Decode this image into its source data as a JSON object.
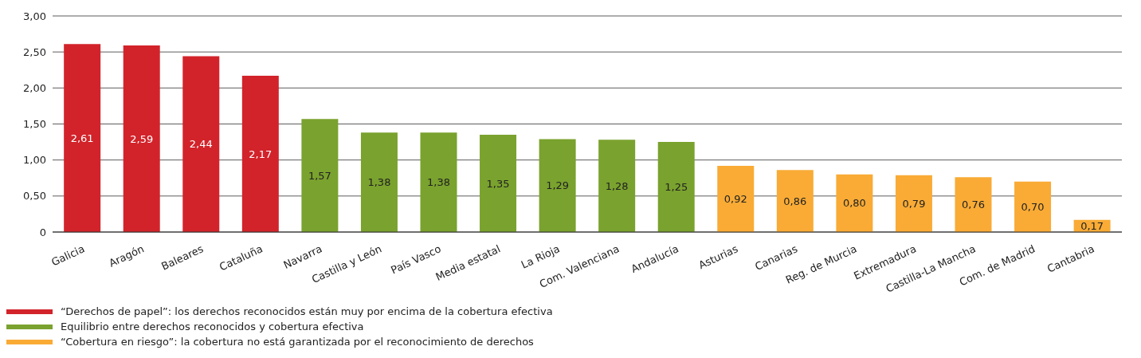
{
  "chart_data": {
    "type": "bar",
    "stacked": true,
    "grid": "y",
    "legend": "bottom left",
    "categories": [
      "Galicia",
      "Aragón",
      "Baleares",
      "Cataluña",
      "Navarra",
      "Castilla y León",
      "País Vasco",
      "Media estatal",
      "La Rioja",
      "Com. Valenciana",
      "Andalucía",
      "Asturias",
      "Canarias",
      "Reg. de Murcia",
      "Extremadura",
      "Castilla-La Mancha",
      "Com. de Madrid",
      "Cantabria"
    ],
    "series": [
      {
        "name": "“Derechos de papel”: los derechos reconocidos están muy por encima de la cobertura efectiva",
        "color": "#d2232a",
        "values": [
          2.61,
          2.59,
          2.44,
          2.17,
          null,
          null,
          null,
          null,
          null,
          null,
          null,
          null,
          null,
          null,
          null,
          null,
          null,
          null
        ],
        "value_labels": [
          "2,61",
          "2,59",
          "2,44",
          "2,17",
          null,
          null,
          null,
          null,
          null,
          null,
          null,
          null,
          null,
          null,
          null,
          null,
          null,
          null
        ]
      },
      {
        "name": "Equilibrio entre derechos reconocidos y cobertura efectiva",
        "color": "#7aa22e",
        "values": [
          null,
          null,
          null,
          null,
          1.57,
          1.38,
          1.38,
          1.35,
          1.29,
          1.28,
          1.25,
          null,
          null,
          null,
          null,
          null,
          null,
          null
        ],
        "value_labels": [
          null,
          null,
          null,
          null,
          "1,57",
          "1,38",
          "1,38",
          "1,35",
          "1,29",
          "1,28",
          "1,25",
          null,
          null,
          null,
          null,
          null,
          null,
          null
        ]
      },
      {
        "name": "“Cobertura en riesgo”: la cobertura no está garantizada por el reconocimiento de derechos",
        "color": "#f9ab35",
        "values": [
          null,
          null,
          null,
          null,
          null,
          null,
          null,
          null,
          null,
          null,
          null,
          0.92,
          0.86,
          0.8,
          0.79,
          0.76,
          0.7,
          0.17
        ],
        "value_labels": [
          null,
          null,
          null,
          null,
          null,
          null,
          null,
          null,
          null,
          null,
          null,
          "0,92",
          "0,86",
          "0,80",
          "0,79",
          "0,76",
          "0,70",
          "0,17"
        ]
      }
    ],
    "ylim": [
      0,
      3
    ],
    "yticks": [
      {
        "value": 0,
        "label": "0"
      },
      {
        "value": 0.5,
        "label": "0,50"
      },
      {
        "value": 1,
        "label": "1,00"
      },
      {
        "value": 1.5,
        "label": "1,50"
      },
      {
        "value": 2,
        "label": "2,00"
      },
      {
        "value": 2.5,
        "label": "2,50"
      },
      {
        "value": 3,
        "label": "3,00"
      }
    ]
  }
}
